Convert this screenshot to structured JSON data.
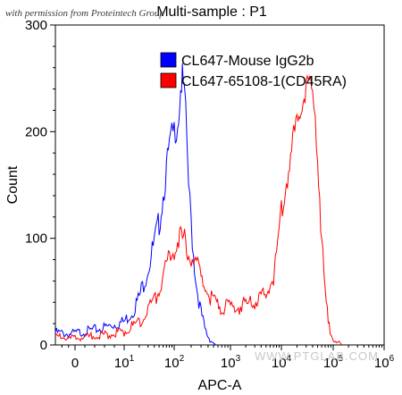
{
  "watermark": "with permission from Proteintech Group",
  "site_watermark": "WWW.PTGLAB.COM",
  "chart_data": {
    "type": "line",
    "title": "Multi-sample : P1",
    "xlabel": "APC-A",
    "ylabel": "Count",
    "xscale": "biexponential",
    "xlim": [
      -300,
      1000000
    ],
    "ylim": [
      0,
      300
    ],
    "x_ticks": [
      {
        "value": 0,
        "base": "0",
        "exp": ""
      },
      {
        "value": 10,
        "base": "10",
        "exp": "1"
      },
      {
        "value": 100,
        "base": "10",
        "exp": "2"
      },
      {
        "value": 1000,
        "base": "10",
        "exp": "3"
      },
      {
        "value": 10000,
        "base": "10",
        "exp": "4"
      },
      {
        "value": 100000,
        "base": "10",
        "exp": "5"
      },
      {
        "value": 1000000,
        "base": "10",
        "exp": "6"
      }
    ],
    "y_ticks": [
      0,
      100,
      200,
      300
    ],
    "legend_position": "top-right",
    "grid": false,
    "series": [
      {
        "name": "CL647-Mouse IgG2b",
        "color": "#0000ff",
        "x": [
          -300,
          -100,
          0,
          5,
          10,
          15,
          20,
          30,
          40,
          50,
          60,
          70,
          80,
          90,
          100,
          110,
          120,
          130,
          140,
          150,
          160,
          170,
          180,
          200,
          220,
          250,
          300,
          350,
          400,
          450,
          500,
          550
        ],
        "y": [
          12,
          10,
          11,
          15,
          22,
          32,
          45,
          72,
          95,
          115,
          140,
          165,
          185,
          195,
          200,
          205,
          215,
          240,
          250,
          235,
          215,
          185,
          150,
          115,
          85,
          55,
          30,
          15,
          8,
          4,
          2,
          0
        ]
      },
      {
        "name": "CL647-65108-1(CD45RA)",
        "color": "#ff0000",
        "x": [
          -300,
          -100,
          0,
          10,
          20,
          30,
          40,
          50,
          60,
          70,
          80,
          90,
          100,
          110,
          120,
          130,
          140,
          160,
          180,
          200,
          250,
          300,
          400,
          500,
          700,
          1000,
          1500,
          2000,
          3000,
          4000,
          5000,
          6000,
          7000,
          8000,
          9000,
          10000,
          12000,
          15000,
          20000,
          25000,
          30000,
          35000,
          40000,
          45000,
          50000,
          55000,
          60000,
          70000,
          80000,
          100000,
          150000
        ],
        "y": [
          8,
          6,
          6,
          12,
          22,
          32,
          42,
          52,
          62,
          72,
          80,
          88,
          92,
          96,
          100,
          103,
          100,
          95,
          90,
          85,
          75,
          62,
          48,
          40,
          36,
          35,
          36,
          38,
          40,
          43,
          48,
          55,
          65,
          80,
          100,
          125,
          150,
          175,
          210,
          230,
          240,
          245,
          235,
          215,
          180,
          140,
          95,
          50,
          20,
          5,
          0
        ]
      }
    ]
  }
}
